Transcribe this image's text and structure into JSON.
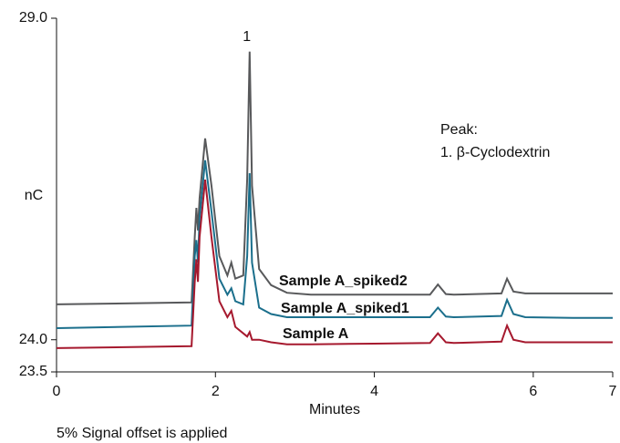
{
  "chart_data": {
    "type": "line",
    "y_label": "nC",
    "x_label": "Minutes",
    "annotation": "1",
    "annotation_x": 2.43,
    "legend_title": "Peak:",
    "legend_entry": "1. β-Cyclodextrin",
    "footnote": "5% Signal offset is applied",
    "x": [
      0,
      1.7,
      1.74,
      1.76,
      1.78,
      1.8,
      1.87,
      1.95,
      2.05,
      2.15,
      2.2,
      2.25,
      2.35,
      2.4,
      2.43,
      2.46,
      2.55,
      2.7,
      2.9,
      3.2,
      4.0,
      4.7,
      4.8,
      4.9,
      5.0,
      5.6,
      5.67,
      5.75,
      5.9,
      6.5,
      7.0
    ],
    "series": [
      {
        "name": "Sample A_spiked2",
        "color": "#58595b",
        "values": [
          24.55,
          24.58,
          25.6,
          26.05,
          25.7,
          26.2,
          27.13,
          26.4,
          25.3,
          25.0,
          25.2,
          24.95,
          25.0,
          26.5,
          28.48,
          26.4,
          25.1,
          24.85,
          24.73,
          24.7,
          24.7,
          24.7,
          24.86,
          24.71,
          24.7,
          24.72,
          24.95,
          24.75,
          24.72,
          24.72,
          24.72
        ]
      },
      {
        "name": "Sample A_spiked1",
        "color": "#1b6f8c",
        "values": [
          24.18,
          24.22,
          25.3,
          25.55,
          25.2,
          25.9,
          26.79,
          26.0,
          24.95,
          24.7,
          24.8,
          24.6,
          24.55,
          25.3,
          26.59,
          25.2,
          24.5,
          24.4,
          24.35,
          24.35,
          24.35,
          24.35,
          24.5,
          24.36,
          24.35,
          24.37,
          24.62,
          24.4,
          24.35,
          24.34,
          24.34
        ]
      },
      {
        "name": "Sample A",
        "color": "#a6192e",
        "values": [
          23.87,
          23.9,
          24.9,
          25.25,
          24.9,
          25.6,
          26.49,
          25.6,
          24.6,
          24.35,
          24.45,
          24.2,
          24.1,
          24.05,
          24.12,
          24.0,
          24.0,
          23.96,
          23.93,
          23.93,
          23.94,
          23.95,
          24.1,
          23.96,
          23.95,
          23.97,
          24.22,
          24.0,
          23.96,
          23.96,
          23.96
        ]
      }
    ],
    "xlim": [
      0,
      7
    ],
    "xticks": [
      0,
      2,
      4,
      6,
      7
    ],
    "ylim": [
      23.5,
      29.0
    ],
    "yticks": [
      {
        "value": 23.5,
        "label": "23.5"
      },
      {
        "value": 24.0,
        "label": "24.0"
      },
      {
        "value": 29.0,
        "label": "29.0"
      }
    ]
  }
}
